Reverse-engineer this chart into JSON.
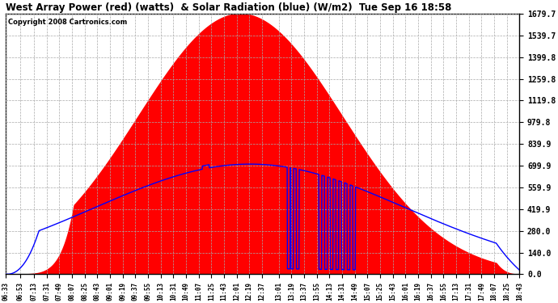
{
  "title": "West Array Power (red) (watts)  & Solar Radiation (blue) (W/m2)  Tue Sep 16 18:58",
  "copyright": "Copyright 2008 Cartronics.com",
  "yticks": [
    0.0,
    140.0,
    280.0,
    419.9,
    559.9,
    699.9,
    839.9,
    979.8,
    1119.8,
    1259.8,
    1399.8,
    1539.7,
    1679.7
  ],
  "ylim": [
    0,
    1679.7
  ],
  "bg_color": "#ffffff",
  "plot_bg": "#ffffff",
  "grid_color": "#aaaaaa",
  "fill_color": "red",
  "line_color": "blue",
  "xtick_labels": [
    "06:33",
    "06:53",
    "07:13",
    "07:31",
    "07:49",
    "08:07",
    "08:25",
    "08:43",
    "09:01",
    "09:19",
    "09:37",
    "09:55",
    "10:13",
    "10:31",
    "10:49",
    "11:07",
    "11:25",
    "11:43",
    "12:01",
    "12:19",
    "12:37",
    "13:01",
    "13:19",
    "13:37",
    "13:55",
    "14:13",
    "14:31",
    "14:49",
    "15:07",
    "15:25",
    "15:43",
    "16:01",
    "16:19",
    "16:37",
    "16:55",
    "17:13",
    "17:31",
    "17:49",
    "18:07",
    "18:25",
    "18:43"
  ]
}
